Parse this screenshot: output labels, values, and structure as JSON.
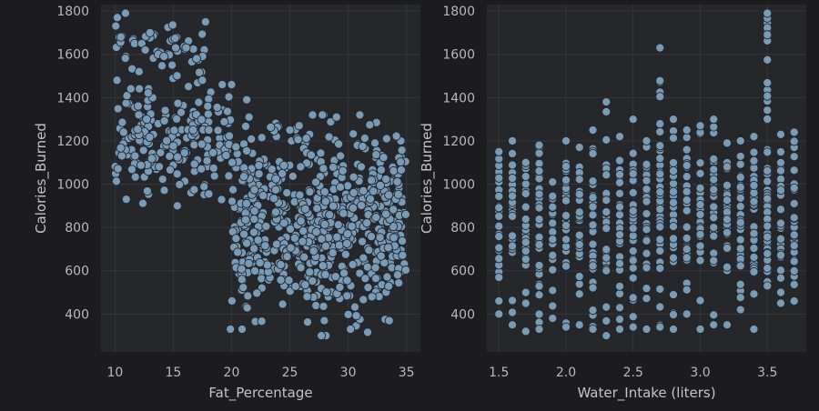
{
  "chart_data": [
    {
      "type": "scatter",
      "xlabel": "Fat_Percentage",
      "ylabel": "Calories_Burned",
      "xlim": [
        8.8,
        36.2
      ],
      "ylim": [
        225,
        1830
      ],
      "xticks": [
        10,
        15,
        20,
        25,
        30,
        35
      ],
      "yticks": [
        400,
        600,
        800,
        1000,
        1200,
        1400,
        1600,
        1800
      ],
      "grid": true,
      "color": "#7a9bb5",
      "clusters": [
        {
          "x_range": [
            10,
            20
          ],
          "y_range": [
            900,
            1500
          ],
          "count": 210
        },
        {
          "x_range": [
            10,
            18
          ],
          "y_range": [
            1450,
            1790
          ],
          "count": 45
        },
        {
          "x_range": [
            20,
            35
          ],
          "y_range": [
            300,
            1320
          ],
          "count": 660
        }
      ],
      "x": [
        10.2,
        10.9,
        10.5,
        12.3,
        12.6,
        13.0,
        14.2,
        14.9,
        15.2,
        16.1,
        17.0,
        17.5,
        19.2,
        20.0,
        21.3,
        21.5,
        25.8,
        25.0,
        29.0,
        31.0,
        32.3,
        33.3,
        27.7,
        30.2,
        19.9,
        20.9
      ],
      "y": [
        1770,
        1790,
        1680,
        1650,
        1620,
        1700,
        1590,
        1550,
        1630,
        1630,
        1580,
        1480,
        1460,
        1460,
        1390,
        1310,
        1270,
        1250,
        1310,
        1320,
        1190,
        1210,
        300,
        330,
        330,
        330
      ]
    },
    {
      "type": "scatter",
      "xlabel": "Water_Intake (liters)",
      "ylabel": "Calories_Burned",
      "xlim": [
        1.41,
        3.79
      ],
      "ylim": [
        225,
        1830
      ],
      "xticks": [
        1.5,
        2.0,
        2.5,
        3.0,
        3.5
      ],
      "xtick_labels": [
        "1.5",
        "2.0",
        "2.5",
        "3.0",
        "3.5"
      ],
      "yticks": [
        400,
        600,
        800,
        1000,
        1200,
        1400,
        1600,
        1800
      ],
      "grid": true,
      "color": "#7a9bb5",
      "x_levels": [
        1.5,
        1.6,
        1.7,
        1.8,
        1.9,
        2.0,
        2.1,
        2.2,
        2.3,
        2.4,
        2.5,
        2.6,
        2.7,
        2.8,
        2.9,
        3.0,
        3.1,
        3.2,
        3.3,
        3.4,
        3.5,
        3.6,
        3.7
      ],
      "level_ranges": [
        [
          400,
          1150
        ],
        [
          350,
          1200
        ],
        [
          320,
          1100
        ],
        [
          330,
          1180
        ],
        [
          380,
          1010
        ],
        [
          340,
          1200
        ],
        [
          350,
          1170
        ],
        [
          330,
          1250
        ],
        [
          300,
          1380
        ],
        [
          330,
          1220
        ],
        [
          340,
          1300
        ],
        [
          330,
          1200
        ],
        [
          340,
          1630
        ],
        [
          330,
          1300
        ],
        [
          400,
          1250
        ],
        [
          330,
          1270
        ],
        [
          350,
          1300
        ],
        [
          350,
          1190
        ],
        [
          420,
          1200
        ],
        [
          330,
          1220
        ],
        [
          530,
          1790
        ],
        [
          450,
          1230
        ],
        [
          460,
          1240
        ]
      ]
    }
  ]
}
